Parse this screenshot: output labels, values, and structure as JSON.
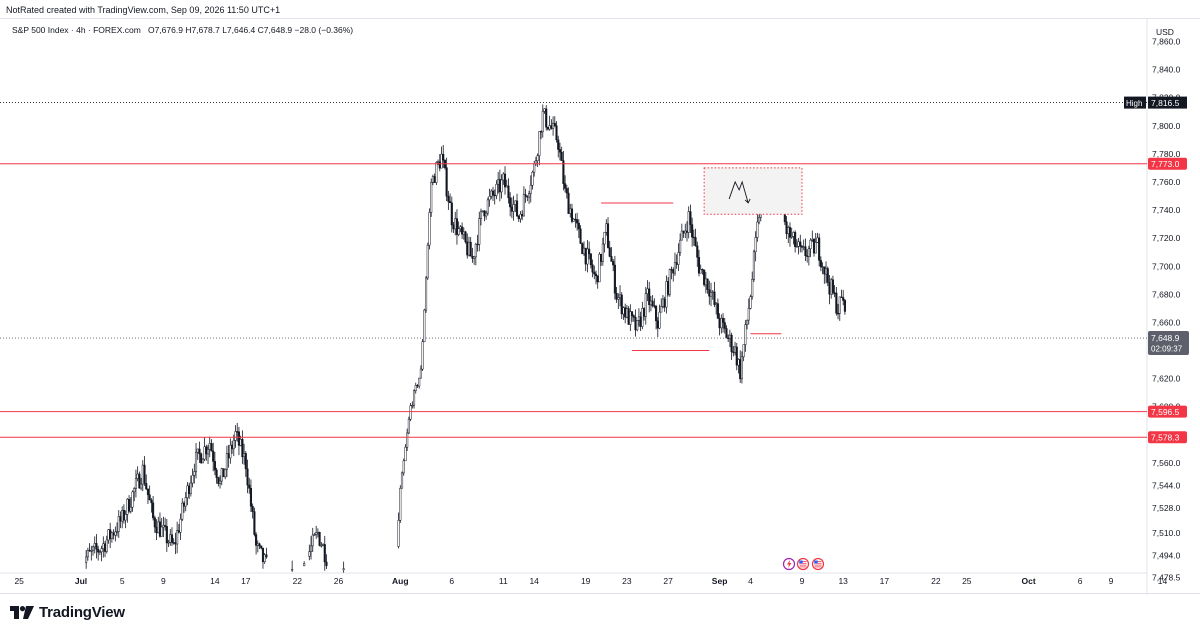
{
  "caption": "NotRated created with TradingView.com, Sep 09, 2026 11:50 UTC+1",
  "brand": {
    "name": "TradingView",
    "icon": "tradingview-logo-icon"
  },
  "chart_data": {
    "type": "candlestick",
    "symbol_line": {
      "symbol": "S&P 500 Index · 4h · FOREX.com",
      "open": "O7,676.9",
      "high": "H7,678.7",
      "low": "L7,646.4",
      "close": "C7,648.9",
      "change": "−28.0 (−0.36%)"
    },
    "currency": "USD",
    "ylim": [
      7466,
      7876
    ],
    "y_ticks": [
      {
        "v": 7478.5,
        "label": "7,478.5"
      },
      {
        "v": 7494,
        "label": "7,494.0"
      },
      {
        "v": 7510,
        "label": "7,510.0"
      },
      {
        "v": 7528,
        "label": "7,528.0"
      },
      {
        "v": 7544,
        "label": "7,544.0"
      },
      {
        "v": 7560,
        "label": "7,560.0"
      },
      {
        "v": 7580,
        "label": "7,580.0"
      },
      {
        "v": 7600,
        "label": "7,600.0"
      },
      {
        "v": 7620,
        "label": "7,620.0"
      },
      {
        "v": 7640,
        "label": "7,640.0"
      },
      {
        "v": 7660,
        "label": "7,660.0"
      },
      {
        "v": 7680,
        "label": "7,680.0"
      },
      {
        "v": 7700,
        "label": "7,700.0"
      },
      {
        "v": 7720,
        "label": "7,720.0"
      },
      {
        "v": 7740,
        "label": "7,740.0"
      },
      {
        "v": 7760,
        "label": "7,760.0"
      },
      {
        "v": 7780,
        "label": "7,780.0"
      },
      {
        "v": 7800,
        "label": "7,800.0"
      },
      {
        "v": 7820,
        "label": "7,820.0"
      },
      {
        "v": 7840,
        "label": "7,840.0"
      },
      {
        "v": 7860,
        "label": "7,860.0"
      }
    ],
    "x_ticks": [
      {
        "day": -6,
        "label": "25",
        "bold": false
      },
      {
        "day": 0,
        "label": "Jul",
        "bold": true
      },
      {
        "day": 4,
        "label": "5",
        "bold": false
      },
      {
        "day": 8,
        "label": "9",
        "bold": false
      },
      {
        "day": 13,
        "label": "14",
        "bold": false
      },
      {
        "day": 16,
        "label": "17",
        "bold": false
      },
      {
        "day": 21,
        "label": "22",
        "bold": false
      },
      {
        "day": 25,
        "label": "26",
        "bold": false
      },
      {
        "day": 31,
        "label": "Aug",
        "bold": true
      },
      {
        "day": 36,
        "label": "6",
        "bold": false
      },
      {
        "day": 41,
        "label": "11",
        "bold": false
      },
      {
        "day": 44,
        "label": "14",
        "bold": false
      },
      {
        "day": 49,
        "label": "19",
        "bold": false
      },
      {
        "day": 53,
        "label": "23",
        "bold": false
      },
      {
        "day": 57,
        "label": "27",
        "bold": false
      },
      {
        "day": 62,
        "label": "Sep",
        "bold": true
      },
      {
        "day": 65,
        "label": "4",
        "bold": false
      },
      {
        "day": 70,
        "label": "9",
        "bold": false
      },
      {
        "day": 74,
        "label": "13",
        "bold": false
      },
      {
        "day": 78,
        "label": "17",
        "bold": false
      },
      {
        "day": 83,
        "label": "22",
        "bold": false
      },
      {
        "day": 86,
        "label": "25",
        "bold": false
      },
      {
        "day": 92,
        "label": "Oct",
        "bold": true
      },
      {
        "day": 97,
        "label": "6",
        "bold": false
      },
      {
        "day": 100,
        "label": "9",
        "bold": false
      },
      {
        "day": 105,
        "label": "14",
        "bold": false
      }
    ],
    "anchors": [
      {
        "day": 0,
        "price": 7490
      },
      {
        "day": 2,
        "price": 7500
      },
      {
        "day": 4,
        "price": 7520
      },
      {
        "day": 6,
        "price": 7555
      },
      {
        "day": 7,
        "price": 7520
      },
      {
        "day": 9,
        "price": 7500
      },
      {
        "day": 11,
        "price": 7560
      },
      {
        "day": 12.5,
        "price": 7575
      },
      {
        "day": 13.5,
        "price": 7545
      },
      {
        "day": 15,
        "price": 7580
      },
      {
        "day": 16,
        "price": 7560
      },
      {
        "day": 17,
        "price": 7500
      },
      {
        "day": 18.5,
        "price": 7480
      },
      {
        "day": 21,
        "price": 7478
      },
      {
        "day": 23,
        "price": 7510
      },
      {
        "day": 24,
        "price": 7490
      },
      {
        "day": 25.5,
        "price": 7478
      },
      {
        "day": 27,
        "price": 7476
      },
      {
        "day": 30.5,
        "price": 7476
      },
      {
        "day": 31,
        "price": 7540
      },
      {
        "day": 32,
        "price": 7600
      },
      {
        "day": 33,
        "price": 7625
      },
      {
        "day": 34,
        "price": 7760
      },
      {
        "day": 35,
        "price": 7778
      },
      {
        "day": 36,
        "price": 7735
      },
      {
        "day": 38,
        "price": 7705
      },
      {
        "day": 39,
        "price": 7740
      },
      {
        "day": 41,
        "price": 7760
      },
      {
        "day": 42.5,
        "price": 7735
      },
      {
        "day": 44,
        "price": 7770
      },
      {
        "day": 44.8,
        "price": 7808
      },
      {
        "day": 45.5,
        "price": 7800
      },
      {
        "day": 46.3,
        "price": 7790
      },
      {
        "day": 47,
        "price": 7752
      },
      {
        "day": 48.5,
        "price": 7718
      },
      {
        "day": 50,
        "price": 7690
      },
      {
        "day": 51,
        "price": 7725
      },
      {
        "day": 52,
        "price": 7680
      },
      {
        "day": 53,
        "price": 7665
      },
      {
        "day": 54,
        "price": 7655
      },
      {
        "day": 55,
        "price": 7678
      },
      {
        "day": 56,
        "price": 7660
      },
      {
        "day": 57.5,
        "price": 7700
      },
      {
        "day": 59,
        "price": 7735
      },
      {
        "day": 60,
        "price": 7700
      },
      {
        "day": 61,
        "price": 7685
      },
      {
        "day": 62,
        "price": 7660
      },
      {
        "day": 63.5,
        "price": 7640
      },
      {
        "day": 64,
        "price": 7625
      },
      {
        "day": 65,
        "price": 7680
      },
      {
        "day": 66,
        "price": 7750
      },
      {
        "day": 67.5,
        "price": 7760
      },
      {
        "day": 68.5,
        "price": 7725
      },
      {
        "day": 70,
        "price": 7708
      },
      {
        "day": 71.5,
        "price": 7715
      },
      {
        "day": 72.5,
        "price": 7690
      },
      {
        "day": 73.5,
        "price": 7670
      },
      {
        "day": 74,
        "price": 7678
      },
      {
        "day": 74.3,
        "price": 7649
      }
    ],
    "levels": [
      {
        "name": "resistance-7773",
        "price": 7773,
        "label": "7,773.0",
        "color": "#f23645"
      },
      {
        "name": "support-7596-5",
        "price": 7596.5,
        "label": "7,596.5",
        "color": "#f23645"
      },
      {
        "name": "support-7578-3",
        "price": 7578.3,
        "label": "7,578.3",
        "color": "#f23645"
      }
    ],
    "high_marker": {
      "price": 7816.5,
      "label": "7,816.5",
      "tag": "High"
    },
    "last_price": {
      "price": 7648.9,
      "label": "7,648.9",
      "countdown": "02:09:37"
    },
    "segments": [
      {
        "name": "segment-7745",
        "from_day": 50.5,
        "to_day": 57.5,
        "price": 7745
      },
      {
        "name": "segment-7640",
        "from_day": 53.5,
        "to_day": 61,
        "price": 7640
      },
      {
        "name": "segment-7652",
        "from_day": 65,
        "to_day": 68,
        "price": 7652
      }
    ],
    "zone": {
      "from_day": 60.5,
      "to_day": 70,
      "top": 7770,
      "bottom": 7737
    },
    "event_icons": [
      "lightning-icon",
      "us-flag-icon",
      "us-flag-icon"
    ],
    "colors": {
      "candle": "#131722",
      "level": "#f23645",
      "zone_fill": "#f3f3f3",
      "last_price_bg": "#5d606b",
      "high_bg": "#131722"
    }
  }
}
